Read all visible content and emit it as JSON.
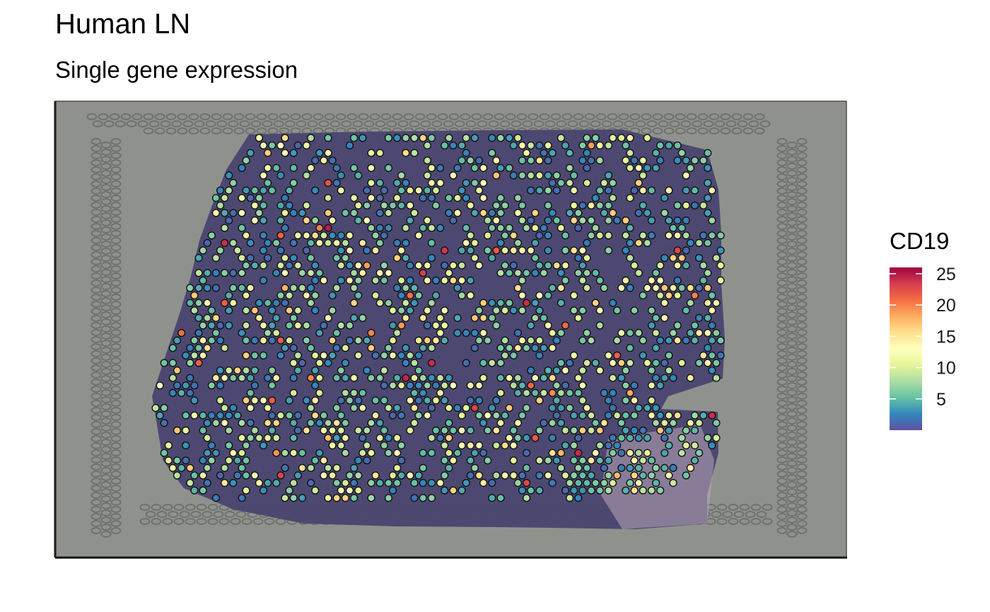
{
  "title": "Human LN",
  "subtitle": "Single gene expression",
  "chart_data": {
    "type": "scatter",
    "description_of_marks": "spatial spots over tissue image colored by expression",
    "legend": {
      "title": "CD19",
      "placement": "right",
      "ticks": [
        5,
        10,
        15,
        20,
        25
      ],
      "range": [
        0,
        26
      ],
      "palette": [
        "#5e4fa2",
        "#3288bd",
        "#66c2a5",
        "#abdda4",
        "#e6f598",
        "#ffffbf",
        "#fee08b",
        "#fdae61",
        "#f46d43",
        "#d53e4f",
        "#9e0142"
      ]
    },
    "xlabel": "",
    "ylabel": "",
    "grid": false,
    "colors": {
      "background": "#8f928c",
      "tissue": "#4a4470",
      "spot_stroke": "#111111"
    }
  }
}
